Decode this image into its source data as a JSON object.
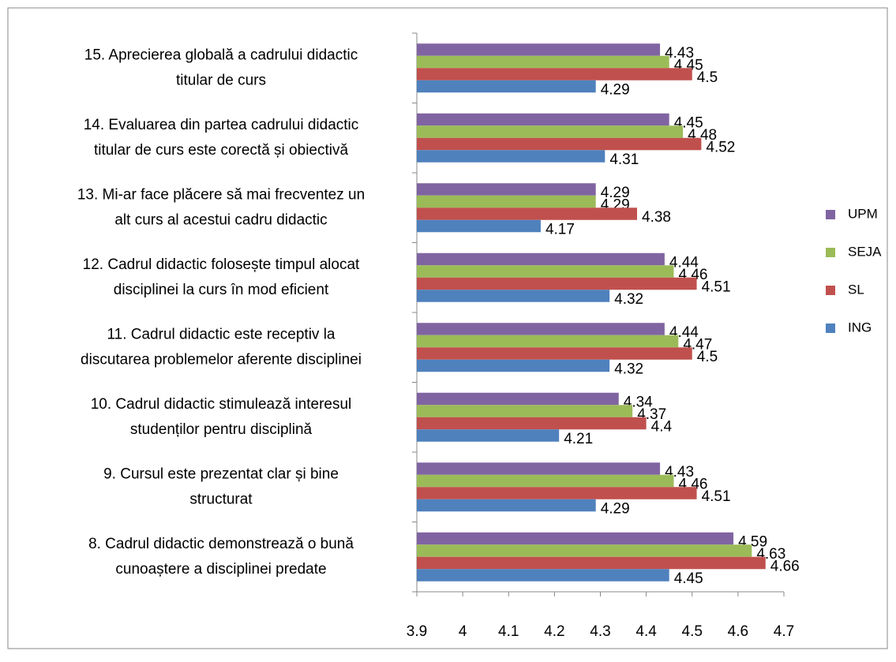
{
  "chart_data": {
    "type": "barh",
    "categories": [
      "15. Aprecierea globală a cadrului didactic\ntitular de curs",
      "14. Evaluarea din partea cadrului didactic\ntitular de curs este corectă și obiectivă",
      "13. Mi-ar face plăcere să mai frecventez un\nalt curs al acestui cadru didactic",
      "12. Cadrul didactic folosește timpul alocat\ndisciplinei la curs în mod eficient",
      "11. Cadrul didactic este receptiv la\ndiscutarea problemelor aferente disciplinei",
      "10. Cadrul didactic stimulează  interesul\nstudenților pentru disciplină",
      "9. Cursul este prezentat clar și bine\nstructurat",
      "8. Cadrul didactic demonstrează o bună\ncunoaștere a disciplinei predate"
    ],
    "series": [
      {
        "name": "UPM",
        "color": "#8064a2",
        "values": [
          4.43,
          4.45,
          4.29,
          4.44,
          4.44,
          4.34,
          4.43,
          4.59
        ]
      },
      {
        "name": "SEJA",
        "color": "#9bbb59",
        "values": [
          4.45,
          4.48,
          4.29,
          4.46,
          4.47,
          4.37,
          4.46,
          4.63
        ]
      },
      {
        "name": "SL",
        "color": "#c0504d",
        "values": [
          4.5,
          4.52,
          4.38,
          4.51,
          4.5,
          4.4,
          4.51,
          4.66
        ]
      },
      {
        "name": "ING",
        "color": "#4f81bd",
        "values": [
          4.29,
          4.31,
          4.17,
          4.32,
          4.32,
          4.21,
          4.29,
          4.45
        ]
      }
    ],
    "xlim": [
      3.9,
      4.7
    ],
    "xticks": [
      3.9,
      4,
      4.1,
      4.2,
      4.3,
      4.4,
      4.5,
      4.6,
      4.7
    ],
    "legend": "right"
  }
}
